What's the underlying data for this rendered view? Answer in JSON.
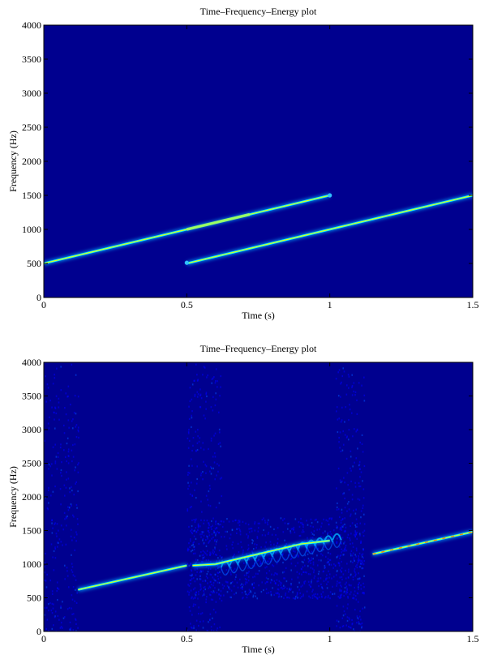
{
  "chart_data": [
    {
      "type": "heatmap",
      "title": "Time–Frequency–Energy plot",
      "xlabel": "Time (s)",
      "ylabel": "Frequency (Hz)",
      "xlim": [
        0,
        1.5
      ],
      "ylim": [
        0,
        4000
      ],
      "xticks": [
        0,
        0.5,
        1,
        1.5
      ],
      "xtick_labels": [
        "0",
        "0.5",
        "1",
        "1.5"
      ],
      "yticks": [
        0,
        500,
        1000,
        1500,
        2000,
        2500,
        3000,
        3500,
        4000
      ],
      "ytick_labels": [
        "0",
        "500",
        "1000",
        "1500",
        "2000",
        "2500",
        "3000",
        "3500",
        "4000"
      ],
      "colors": {
        "background": "#00008f",
        "ridge": "#00ffff",
        "ridge_hot": "#ffff00",
        "ridge_max": "#ff8000"
      },
      "series": [
        {
          "x": [
            0,
            1.0
          ],
          "y": [
            500,
            1500
          ]
        },
        {
          "x": [
            0.5,
            1.5
          ],
          "y": [
            500,
            1500
          ]
        }
      ]
    },
    {
      "type": "heatmap",
      "title": "Time–Frequency–Energy plot",
      "xlabel": "Time (s)",
      "ylabel": "Frequency (Hz)",
      "xlim": [
        0,
        1.5
      ],
      "ylim": [
        0,
        4000
      ],
      "xticks": [
        0,
        0.5,
        1,
        1.5
      ],
      "xtick_labels": [
        "0",
        "0.5",
        "1",
        "1.5"
      ],
      "yticks": [
        0,
        500,
        1000,
        1500,
        2000,
        2500,
        3000,
        3500,
        4000
      ],
      "ytick_labels": [
        "0",
        "500",
        "1000",
        "1500",
        "2000",
        "2500",
        "3000",
        "3500",
        "4000"
      ],
      "colors": {
        "background": "#00008f",
        "ridge": "#00ffff",
        "ridge_hot": "#ffff00",
        "ridge_max": "#ff8000"
      },
      "series": [
        {
          "x": [
            0.12,
            0.5
          ],
          "y": [
            620,
            980
          ]
        },
        {
          "x": [
            0.52,
            0.6,
            0.7,
            0.8,
            0.9,
            1.0
          ],
          "y": [
            980,
            1000,
            1100,
            1200,
            1300,
            1350
          ]
        },
        {
          "x": [
            1.15,
            1.5
          ],
          "y": [
            1150,
            1480
          ]
        }
      ]
    }
  ]
}
